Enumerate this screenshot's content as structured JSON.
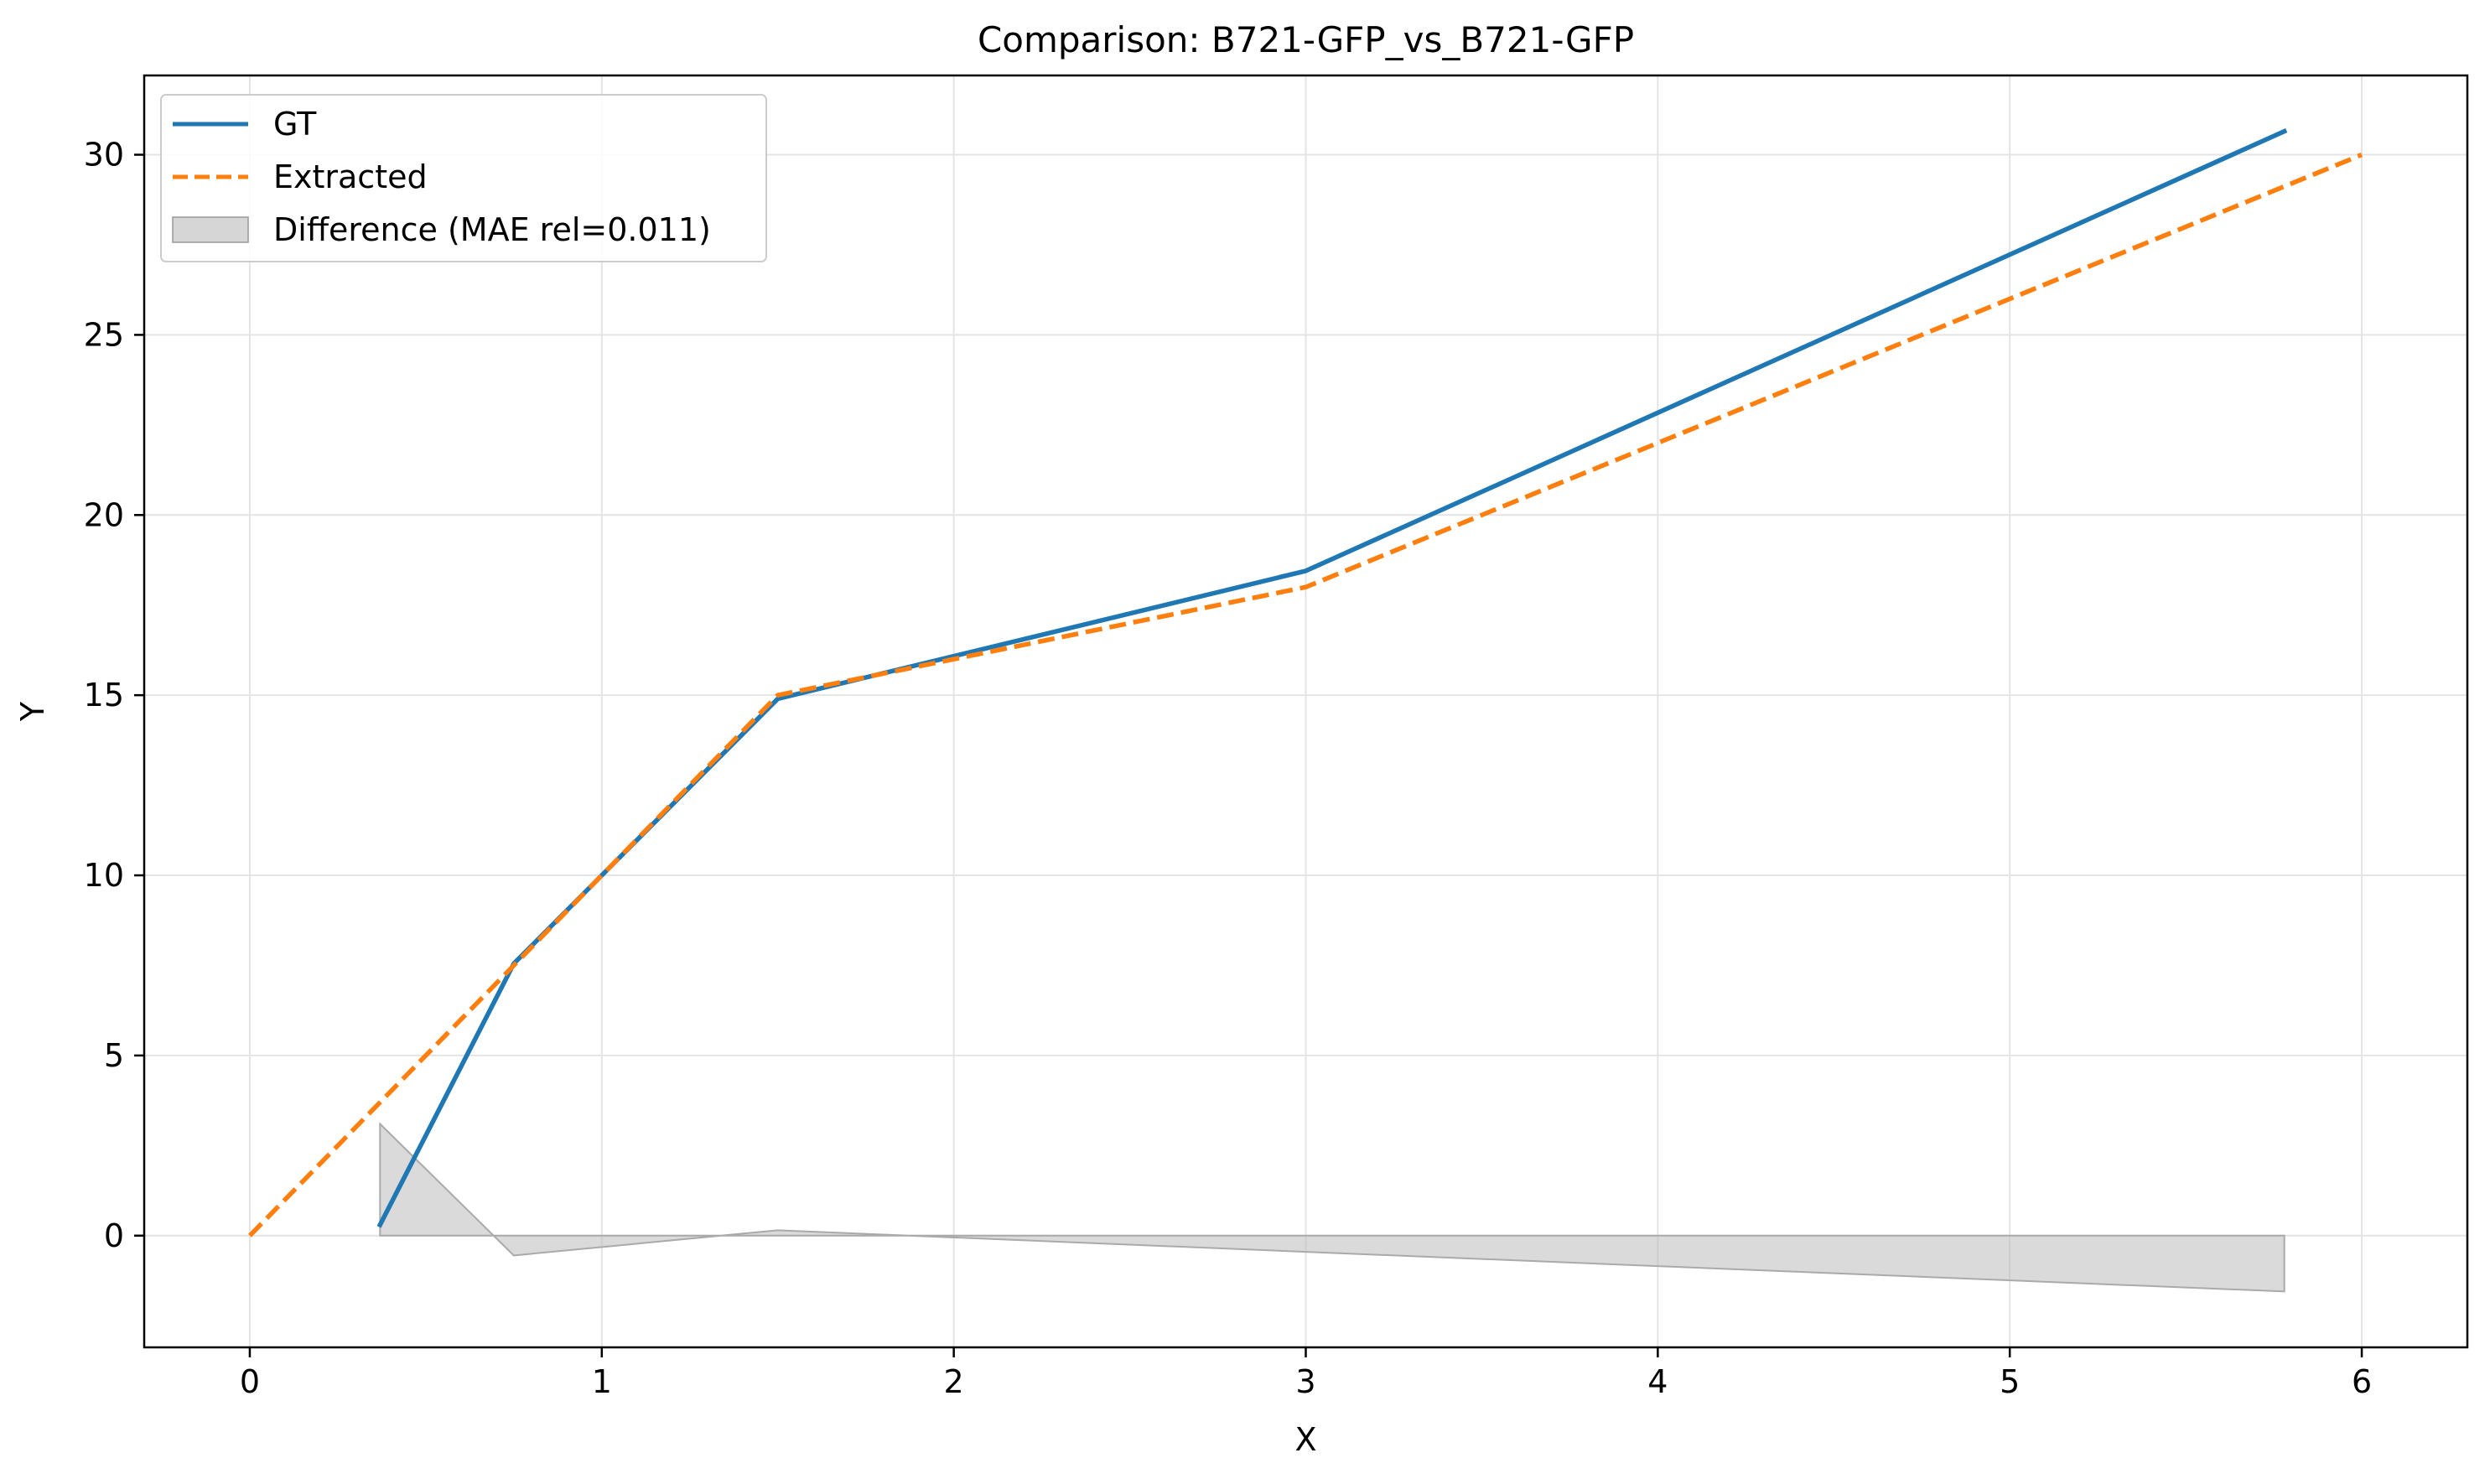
{
  "chart_data": {
    "type": "line",
    "title": "Comparison: B721-GFP_vs_B721-GFP",
    "xlabel": "X",
    "ylabel": "Y",
    "xlim": [
      -0.3,
      6.3
    ],
    "ylim": [
      -3.1,
      32.2
    ],
    "xticks": [
      0,
      1,
      2,
      3,
      4,
      5,
      6
    ],
    "yticks": [
      0,
      5,
      10,
      15,
      20,
      25,
      30
    ],
    "grid": true,
    "legend_position": "top-left",
    "series": [
      {
        "name": "GT",
        "style": "solid",
        "color": "#1f77b4",
        "x": [
          0.37,
          0.75,
          1.5,
          3.0,
          5.78
        ],
        "y": [
          0.3,
          7.55,
          14.9,
          18.45,
          30.65
        ]
      },
      {
        "name": "Extracted",
        "style": "dashed",
        "color": "#ff7f0e",
        "x": [
          0.0,
          1.5,
          3.0,
          6.0
        ],
        "y": [
          0.0,
          15.0,
          18.0,
          30.0
        ]
      }
    ],
    "difference": {
      "name": "Difference (MAE rel=0.011)",
      "color": "#bbbbbb",
      "x": [
        0.37,
        0.75,
        1.5,
        3.0,
        5.78
      ],
      "y": [
        3.1,
        -0.55,
        0.15,
        -0.45,
        -1.55
      ]
    }
  }
}
